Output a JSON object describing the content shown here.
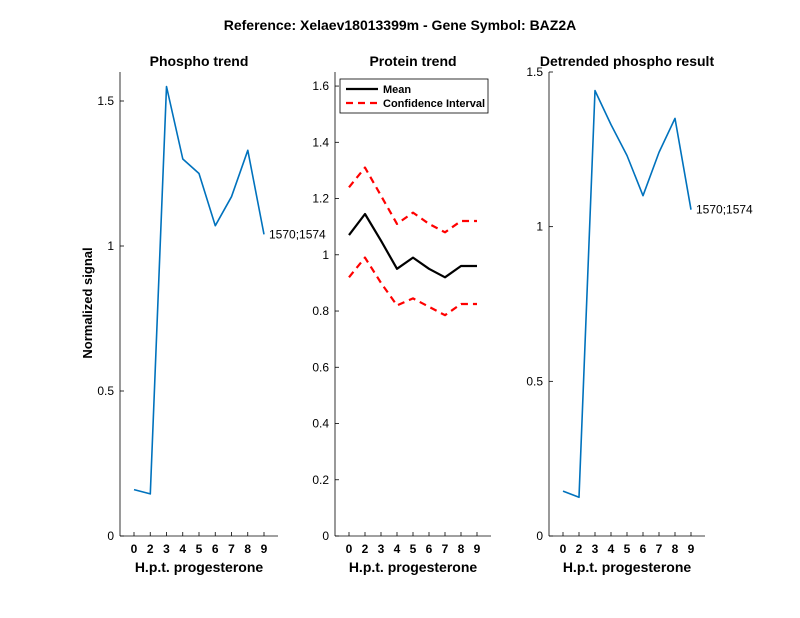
{
  "figure": {
    "suptitle": "Reference:  Xelaev18013399m - Gene Symbol:  BAZ2A"
  },
  "colors": {
    "phospho": "#0072BD",
    "mean": "#000000",
    "ci": "#FF0000"
  },
  "chart_data": [
    {
      "type": "line",
      "title": "Phospho trend",
      "xlabel": "H.p.t. progesterone",
      "ylabel": "Normalized signal",
      "x_ticks": [
        "0",
        "2",
        "3",
        "4",
        "5",
        "6",
        "7",
        "8",
        "9"
      ],
      "ylim": [
        0,
        1.6
      ],
      "y_ticks": [
        0,
        0.5,
        1,
        1.5
      ],
      "y_tick_labels": [
        "0",
        "0.5",
        "1",
        "1.5"
      ],
      "series": [
        {
          "name": "1570;1574",
          "values": [
            0.16,
            0.145,
            1.55,
            1.3,
            1.25,
            1.07,
            1.17,
            1.33,
            1.04
          ]
        }
      ],
      "annotation": "1570;1574"
    },
    {
      "type": "line",
      "title": "Protein trend",
      "xlabel": "H.p.t. progesterone",
      "x_ticks": [
        "0",
        "2",
        "3",
        "4",
        "5",
        "6",
        "7",
        "8",
        "9"
      ],
      "ylim": [
        0,
        1.65
      ],
      "y_ticks": [
        0,
        0.2,
        0.4,
        0.6,
        0.8,
        1,
        1.2,
        1.4,
        1.6
      ],
      "y_tick_labels": [
        "0",
        "0.2",
        "0.4",
        "0.6",
        "0.8",
        "1",
        "1.2",
        "1.4",
        "1.6"
      ],
      "legend": [
        "Mean",
        "Confidence Interval"
      ],
      "series": [
        {
          "name": "Mean",
          "values": [
            1.07,
            1.145,
            1.05,
            0.95,
            0.99,
            0.95,
            0.92,
            0.96,
            0.96
          ]
        },
        {
          "name": "CI upper",
          "values": [
            1.24,
            1.31,
            1.21,
            1.11,
            1.15,
            1.11,
            1.08,
            1.12,
            1.12
          ]
        },
        {
          "name": "CI lower",
          "values": [
            0.92,
            0.99,
            0.9,
            0.82,
            0.845,
            0.815,
            0.785,
            0.825,
            0.825
          ]
        }
      ]
    },
    {
      "type": "line",
      "title": "Detrended phospho result",
      "xlabel": "H.p.t. progesterone",
      "x_ticks": [
        "0",
        "2",
        "3",
        "4",
        "5",
        "6",
        "7",
        "8",
        "9"
      ],
      "ylim": [
        0,
        1.5
      ],
      "y_ticks": [
        0,
        0.5,
        1,
        1.5
      ],
      "y_tick_labels": [
        "0",
        "0.5",
        "1",
        "1.5"
      ],
      "series": [
        {
          "name": "1570;1574",
          "values": [
            0.145,
            0.125,
            1.44,
            1.33,
            1.23,
            1.1,
            1.24,
            1.35,
            1.055
          ]
        }
      ],
      "annotation": "1570;1574"
    }
  ]
}
